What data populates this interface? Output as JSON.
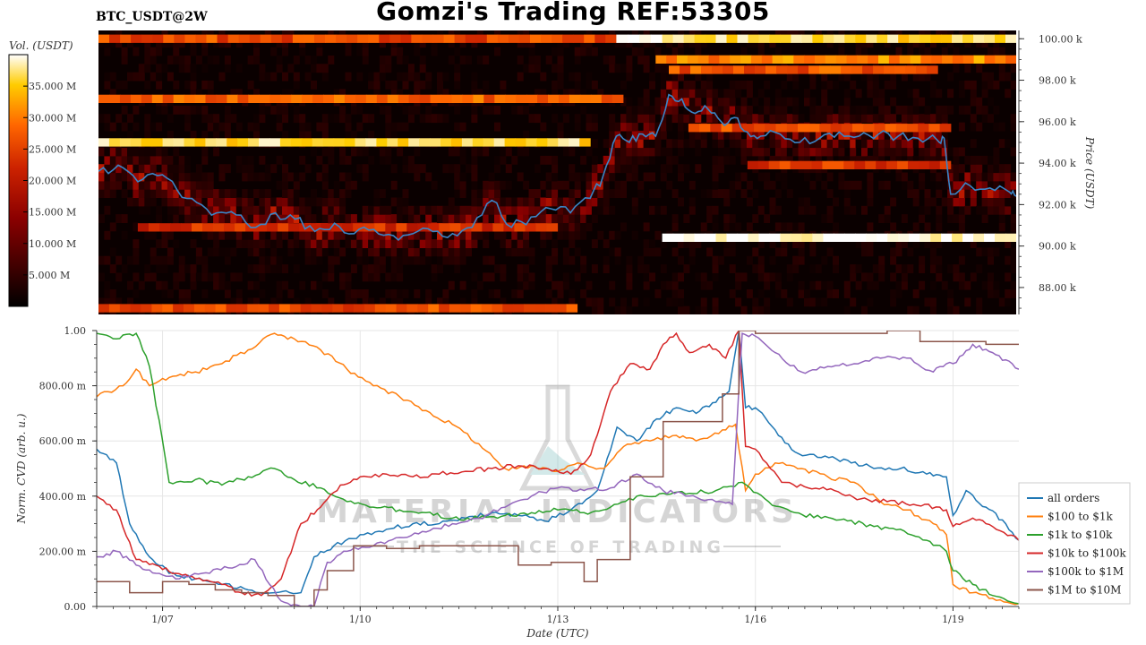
{
  "header": {
    "title": "Gomzi's Trading REF:53305",
    "symbol": "BTC_USDT@2W"
  },
  "watermark": {
    "line1": "MATERIAL INDICATORS",
    "line2": "THE SCIENCE OF TRADING"
  },
  "colorbar": {
    "label": "Vol. (USDT)",
    "ticks": [
      "5.000 M",
      "10.000 M",
      "15.000 M",
      "20.000 M",
      "25.000 M",
      "30.000 M",
      "35.000 M"
    ],
    "tick_values": [
      5,
      10,
      15,
      20,
      25,
      30,
      35
    ],
    "range": [
      0,
      40
    ],
    "colormap": [
      "#000000",
      "#3d0000",
      "#8b0000",
      "#cc2200",
      "#ff6600",
      "#ffcc00",
      "#ffffff"
    ]
  },
  "chart_data": [
    {
      "type": "heatmap",
      "title": "",
      "xlabel": "",
      "ylabel": "Price (USDT)",
      "ylim": [
        86.7,
        100.4
      ],
      "y_ticks": [
        "88.00 k",
        "90.00 k",
        "92.00 k",
        "94.00 k",
        "96.00 k",
        "98.00 k",
        "100.00 k"
      ],
      "y_tick_values": [
        88,
        90,
        92,
        94,
        96,
        98,
        100
      ],
      "x_range_days": [
        6.0,
        20.0
      ],
      "walls": [
        {
          "price": 100.0,
          "from": 6.0,
          "to": 13.9,
          "level": 0.6
        },
        {
          "price": 100.0,
          "from": 13.9,
          "to": 14.6,
          "level": 1.0
        },
        {
          "price": 100.0,
          "from": 14.6,
          "to": 20.0,
          "level": 0.88
        },
        {
          "price": 99.0,
          "from": 14.5,
          "to": 20.0,
          "level": 0.72
        },
        {
          "price": 98.5,
          "from": 14.7,
          "to": 18.8,
          "level": 0.62
        },
        {
          "price": 97.1,
          "from": 6.0,
          "to": 14.0,
          "level": 0.65
        },
        {
          "price": 95.0,
          "from": 6.0,
          "to": 13.5,
          "level": 0.88
        },
        {
          "price": 95.7,
          "from": 15.0,
          "to": 19.0,
          "level": 0.6
        },
        {
          "price": 93.9,
          "from": 15.9,
          "to": 19.0,
          "level": 0.55
        },
        {
          "price": 90.4,
          "from": 14.6,
          "to": 20.0,
          "level": 1.0
        },
        {
          "price": 90.9,
          "from": 6.6,
          "to": 13.0,
          "level": 0.52
        },
        {
          "price": 87.0,
          "from": 6.0,
          "to": 13.3,
          "level": 0.6
        }
      ],
      "series": [
        {
          "name": "price",
          "color": "#3a85c6",
          "x": [
            6.0,
            6.3,
            6.6,
            6.9,
            7.2,
            7.5,
            7.8,
            8.1,
            8.4,
            8.7,
            9.0,
            9.3,
            9.6,
            9.9,
            10.2,
            10.5,
            10.8,
            11.1,
            11.4,
            11.7,
            12.0,
            12.3,
            12.6,
            12.9,
            13.2,
            13.5,
            13.7,
            13.9,
            14.1,
            14.3,
            14.5,
            14.7,
            14.9,
            15.1,
            15.3,
            15.5,
            15.7,
            15.9,
            16.1,
            16.4,
            16.7,
            17.0,
            17.3,
            17.6,
            17.9,
            18.2,
            18.5,
            18.8,
            18.9,
            19.0,
            19.3,
            19.6,
            19.9,
            20.0
          ],
          "y": [
            93.6,
            93.9,
            93.1,
            93.4,
            92.7,
            92.1,
            91.6,
            91.5,
            90.9,
            91.6,
            91.3,
            90.7,
            91.1,
            90.6,
            90.8,
            90.5,
            90.6,
            90.7,
            90.6,
            90.9,
            92.2,
            90.9,
            91.4,
            91.8,
            91.6,
            92.3,
            93.4,
            95.3,
            95.0,
            95.4,
            95.3,
            97.3,
            97.1,
            96.4,
            96.6,
            96.0,
            96.2,
            95.5,
            95.3,
            95.4,
            95.0,
            95.2,
            95.5,
            95.3,
            95.4,
            95.3,
            95.2,
            95.1,
            95.2,
            92.5,
            92.9,
            92.8,
            92.6,
            92.4
          ]
        }
      ]
    },
    {
      "type": "line",
      "title": "",
      "xlabel": "Date (UTC)",
      "ylabel": "Norm. CVD (arb. u.)",
      "xlim": [
        6.0,
        20.0
      ],
      "ylim": [
        0,
        1
      ],
      "x_ticks": [
        "1/07",
        "1/10",
        "1/13",
        "1/16",
        "1/19"
      ],
      "x_tick_values": [
        7,
        10,
        13,
        16,
        19
      ],
      "y_ticks": [
        "0.00",
        "200.00 m",
        "400.00 m",
        "600.00 m",
        "800.00 m",
        "1.00"
      ],
      "y_tick_values": [
        0,
        0.2,
        0.4,
        0.6,
        0.8,
        1.0
      ],
      "grid": true,
      "legend_position": "bottom-right",
      "series": [
        {
          "name": "all orders",
          "color": "#1f77b4",
          "x": [
            6.0,
            6.3,
            6.5,
            6.8,
            7.1,
            7.5,
            7.9,
            8.3,
            8.7,
            9.1,
            9.3,
            9.6,
            10.0,
            10.4,
            10.8,
            11.2,
            11.6,
            12.0,
            12.4,
            12.8,
            13.2,
            13.6,
            13.9,
            14.2,
            14.5,
            14.8,
            15.1,
            15.4,
            15.6,
            15.75,
            15.85,
            16.0,
            16.3,
            16.6,
            17.0,
            17.4,
            17.8,
            18.2,
            18.6,
            18.9,
            19.0,
            19.2,
            19.5,
            19.8,
            20.0
          ],
          "y": [
            0.57,
            0.52,
            0.3,
            0.18,
            0.12,
            0.1,
            0.08,
            0.06,
            0.05,
            0.05,
            0.18,
            0.22,
            0.26,
            0.28,
            0.3,
            0.3,
            0.32,
            0.34,
            0.33,
            0.31,
            0.35,
            0.42,
            0.65,
            0.6,
            0.68,
            0.72,
            0.7,
            0.74,
            0.78,
            1.0,
            0.72,
            0.72,
            0.64,
            0.56,
            0.54,
            0.53,
            0.5,
            0.5,
            0.48,
            0.47,
            0.33,
            0.42,
            0.36,
            0.3,
            0.24
          ]
        },
        {
          "name": "$100 to $1k",
          "color": "#ff7f0e",
          "x": [
            6.0,
            6.4,
            6.6,
            6.8,
            7.1,
            7.5,
            7.9,
            8.3,
            8.7,
            9.0,
            9.4,
            9.8,
            10.2,
            10.6,
            11.0,
            11.4,
            11.8,
            12.2,
            12.6,
            13.0,
            13.3,
            13.7,
            14.0,
            14.4,
            14.8,
            15.1,
            15.5,
            15.7,
            15.85,
            16.0,
            16.3,
            16.7,
            17.1,
            17.5,
            17.9,
            18.3,
            18.7,
            18.9,
            19.0,
            19.3,
            19.6,
            20.0
          ],
          "y": [
            0.76,
            0.8,
            0.86,
            0.8,
            0.83,
            0.85,
            0.88,
            0.93,
            0.99,
            0.97,
            0.93,
            0.86,
            0.8,
            0.76,
            0.71,
            0.66,
            0.59,
            0.5,
            0.51,
            0.49,
            0.52,
            0.5,
            0.58,
            0.6,
            0.62,
            0.6,
            0.64,
            0.66,
            0.42,
            0.48,
            0.52,
            0.5,
            0.47,
            0.45,
            0.38,
            0.35,
            0.3,
            0.26,
            0.08,
            0.05,
            0.03,
            0.01
          ]
        },
        {
          "name": "$1k to $10k",
          "color": "#2ca02c",
          "x": [
            6.0,
            6.3,
            6.6,
            6.8,
            7.0,
            7.1,
            7.5,
            7.9,
            8.3,
            8.7,
            9.0,
            9.4,
            9.8,
            10.2,
            10.6,
            11.0,
            11.4,
            11.8,
            12.2,
            12.6,
            13.0,
            13.4,
            13.8,
            14.2,
            14.6,
            15.0,
            15.4,
            15.8,
            16.2,
            16.6,
            17.0,
            17.4,
            17.8,
            18.2,
            18.6,
            18.9,
            19.0,
            19.3,
            19.6,
            20.0
          ],
          "y": [
            0.99,
            0.97,
            0.99,
            0.87,
            0.6,
            0.45,
            0.46,
            0.44,
            0.47,
            0.5,
            0.46,
            0.43,
            0.38,
            0.36,
            0.35,
            0.34,
            0.32,
            0.32,
            0.33,
            0.34,
            0.35,
            0.34,
            0.36,
            0.4,
            0.41,
            0.41,
            0.42,
            0.45,
            0.38,
            0.34,
            0.32,
            0.31,
            0.29,
            0.28,
            0.24,
            0.2,
            0.13,
            0.08,
            0.04,
            0.01
          ]
        },
        {
          "name": "$10k to $100k",
          "color": "#d62728",
          "x": [
            6.0,
            6.3,
            6.6,
            6.9,
            7.2,
            7.5,
            7.9,
            8.2,
            8.5,
            8.8,
            9.1,
            9.4,
            9.7,
            10.0,
            10.4,
            10.8,
            11.2,
            11.6,
            12.0,
            12.4,
            12.8,
            13.2,
            13.5,
            13.8,
            14.1,
            14.4,
            14.6,
            14.8,
            15.0,
            15.3,
            15.55,
            15.75,
            15.85,
            16.0,
            16.4,
            16.8,
            17.2,
            17.6,
            18.0,
            18.4,
            18.8,
            18.9,
            19.0,
            19.3,
            19.6,
            20.0
          ],
          "y": [
            0.4,
            0.35,
            0.17,
            0.15,
            0.12,
            0.1,
            0.08,
            0.05,
            0.04,
            0.1,
            0.3,
            0.36,
            0.44,
            0.47,
            0.48,
            0.47,
            0.48,
            0.49,
            0.5,
            0.51,
            0.5,
            0.48,
            0.55,
            0.78,
            0.88,
            0.86,
            0.95,
            0.99,
            0.92,
            0.95,
            0.9,
            1.0,
            0.58,
            0.57,
            0.45,
            0.43,
            0.42,
            0.39,
            0.38,
            0.37,
            0.36,
            0.35,
            0.29,
            0.32,
            0.29,
            0.24
          ]
        },
        {
          "name": "$100k to $1M",
          "color": "#9467bd",
          "x": [
            6.0,
            6.3,
            6.6,
            6.9,
            7.2,
            7.6,
            8.0,
            8.4,
            8.8,
            9.1,
            9.3,
            9.5,
            9.8,
            10.2,
            10.6,
            11.0,
            11.4,
            11.8,
            12.2,
            12.6,
            13.0,
            13.4,
            13.8,
            14.2,
            14.6,
            15.0,
            15.4,
            15.65,
            15.8,
            16.0,
            16.3,
            16.7,
            17.1,
            17.5,
            17.9,
            18.3,
            18.7,
            18.9,
            19.0,
            19.3,
            19.6,
            19.9,
            20.0
          ],
          "y": [
            0.18,
            0.2,
            0.15,
            0.12,
            0.1,
            0.12,
            0.14,
            0.17,
            0.02,
            0.0,
            0.0,
            0.16,
            0.2,
            0.22,
            0.25,
            0.27,
            0.3,
            0.32,
            0.36,
            0.4,
            0.43,
            0.42,
            0.43,
            0.48,
            0.42,
            0.4,
            0.38,
            0.37,
            0.99,
            0.98,
            0.92,
            0.85,
            0.87,
            0.88,
            0.9,
            0.9,
            0.85,
            0.88,
            0.88,
            0.95,
            0.92,
            0.88,
            0.86
          ]
        },
        {
          "name": "$1M to $10M",
          "color": "#8c564b",
          "step": true,
          "x": [
            6.0,
            6.5,
            7.0,
            7.4,
            7.8,
            8.2,
            8.6,
            9.0,
            9.3,
            9.5,
            9.9,
            10.4,
            10.9,
            11.4,
            11.9,
            12.4,
            12.9,
            13.4,
            13.6,
            14.1,
            14.6,
            15.0,
            15.5,
            15.75,
            16.0,
            16.5,
            17.0,
            17.5,
            18.0,
            18.5,
            19.0,
            19.5,
            20.0
          ],
          "y": [
            0.09,
            0.05,
            0.09,
            0.08,
            0.06,
            0.05,
            0.04,
            0.0,
            0.06,
            0.13,
            0.22,
            0.21,
            0.22,
            0.22,
            0.22,
            0.15,
            0.16,
            0.09,
            0.17,
            0.47,
            0.67,
            0.67,
            0.77,
            1.0,
            0.99,
            0.99,
            0.99,
            0.99,
            1.0,
            0.96,
            0.96,
            0.95,
            0.95
          ]
        }
      ]
    }
  ]
}
